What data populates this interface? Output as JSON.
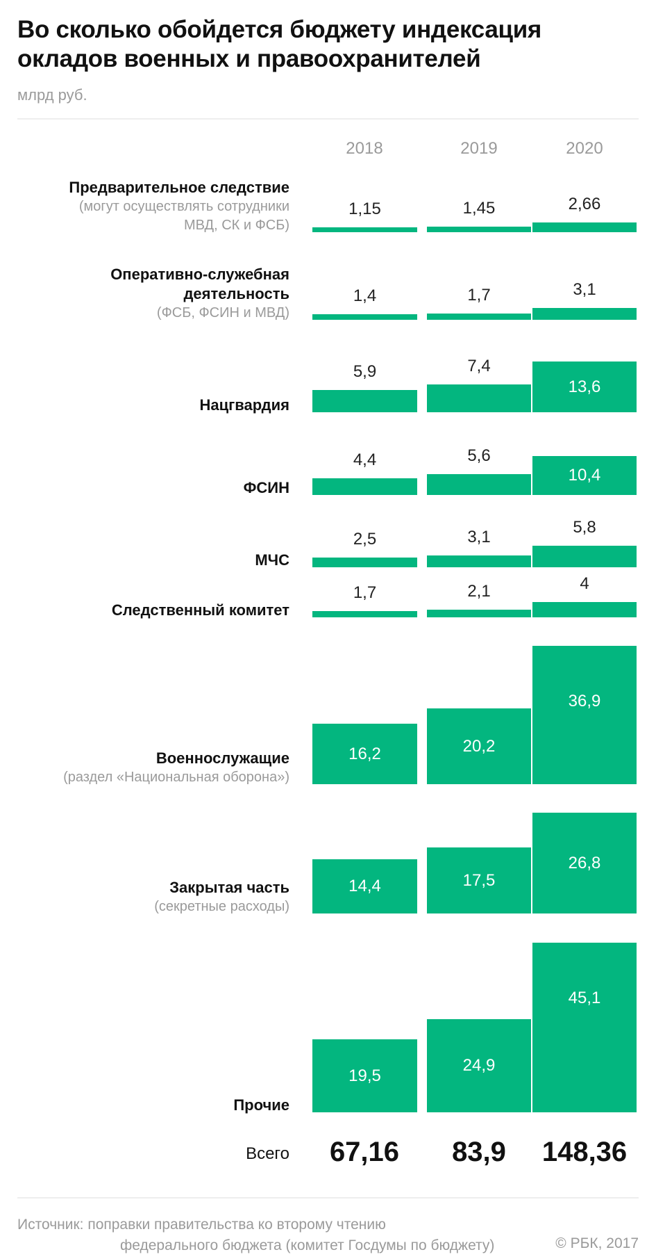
{
  "header": {
    "title": "Во сколько обойдется бюджету индексация окладов военных и правоохранителей",
    "subtitle": "млрд руб."
  },
  "chart_data": {
    "type": "bar",
    "title": "Во сколько обойдется бюджету индексация окладов военных и правоохранителей",
    "unit": "млрд руб.",
    "years": [
      "2018",
      "2019",
      "2020"
    ],
    "color": "#03b67f",
    "rows": [
      {
        "title": "Предварительное следствие",
        "sub": [
          "(могут осуществлять сотрудники",
          "МВД, СК и ФСБ)"
        ],
        "values": [
          1.15,
          1.45,
          2.66
        ],
        "labels": [
          "1,15",
          "1,45",
          "2,66"
        ]
      },
      {
        "title": "Оперативно-служебная",
        "title2": "деятельность",
        "sub": [
          "(ФСБ, ФСИН и МВД)"
        ],
        "values": [
          1.4,
          1.7,
          3.1
        ],
        "labels": [
          "1,4",
          "1,7",
          "3,1"
        ]
      },
      {
        "title": "Нацгвардия",
        "sub": [],
        "values": [
          5.9,
          7.4,
          13.6
        ],
        "labels": [
          "5,9",
          "7,4",
          "13,6"
        ]
      },
      {
        "title": "ФСИН",
        "sub": [],
        "values": [
          4.4,
          5.6,
          10.4
        ],
        "labels": [
          "4,4",
          "5,6",
          "10,4"
        ]
      },
      {
        "title": "МЧС",
        "sub": [],
        "values": [
          2.5,
          3.1,
          5.8
        ],
        "labels": [
          "2,5",
          "3,1",
          "5,8"
        ]
      },
      {
        "title": "Следственный комитет",
        "sub": [],
        "values": [
          1.7,
          2.1,
          4
        ],
        "labels": [
          "1,7",
          "2,1",
          "4"
        ]
      },
      {
        "title": "Военнослужащие",
        "sub": [
          "(раздел «Национальная оборона»)"
        ],
        "values": [
          16.2,
          20.2,
          36.9
        ],
        "labels": [
          "16,2",
          "20,2",
          "36,9"
        ]
      },
      {
        "title": "Закрытая часть",
        "sub": [
          "(секретные расходы)"
        ],
        "values": [
          14.4,
          17.5,
          26.8
        ],
        "labels": [
          "14,4",
          "17,5",
          "26,8"
        ]
      },
      {
        "title": "Прочие",
        "sub": [],
        "values": [
          19.5,
          24.9,
          45.1
        ],
        "labels": [
          "19,5",
          "24,9",
          "45,1"
        ]
      }
    ],
    "totals": {
      "label": "Всего",
      "values": [
        "67,16",
        "83,9",
        "148,36"
      ]
    }
  },
  "footer": {
    "source_line1": "Источник: поправки правительства ко второму чтению",
    "source_line2": "федерального бюджета (комитет Госдумы по бюджету)",
    "copyright": "© РБК, 2017"
  }
}
